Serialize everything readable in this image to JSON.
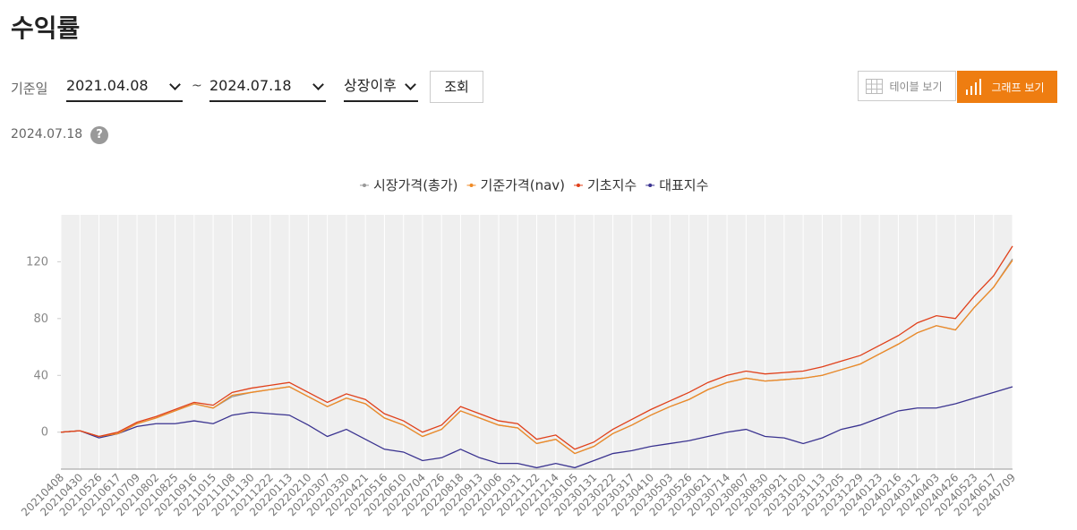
{
  "header": {
    "title": "수익률"
  },
  "controls": {
    "label": "기준일",
    "start": "2021.04.08",
    "tilde": "~",
    "end": "2024.07.18",
    "period": "상장이후",
    "search": "조회",
    "table_view": "테이블 보기",
    "graph_view": "그래프 보기"
  },
  "as_of": "2024.07.18",
  "help": "?",
  "chart_data": {
    "type": "line",
    "categories": [
      "20210408",
      "20210430",
      "20210526",
      "20210617",
      "20210709",
      "20210802",
      "20210825",
      "20210916",
      "20211015",
      "20211108",
      "20211130",
      "20211222",
      "20220113",
      "20220210",
      "20220307",
      "20220330",
      "20220421",
      "20220516",
      "20220610",
      "20220704",
      "20220726",
      "20220818",
      "20220913",
      "20221006",
      "20221031",
      "20221122",
      "20221214",
      "20230105",
      "20230131",
      "20230222",
      "20230317",
      "20230410",
      "20230503",
      "20230526",
      "20230621",
      "20230714",
      "20230807",
      "20230830",
      "20230921",
      "20231020",
      "20231113",
      "20231205",
      "20231229",
      "20240123",
      "20240216",
      "20240312",
      "20240403",
      "20240426",
      "20240523",
      "20240617",
      "20240709"
    ],
    "series": [
      {
        "name": "시장가격(총가)",
        "color": "#999999",
        "values": [
          0,
          1,
          -3,
          -1,
          6,
          10,
          15,
          20,
          17,
          25,
          28,
          30,
          32,
          25,
          18,
          24,
          20,
          10,
          5,
          -3,
          2,
          15,
          10,
          5,
          3,
          -8,
          -5,
          -15,
          -10,
          -1,
          5,
          12,
          18,
          23,
          30,
          35,
          38,
          36,
          37,
          38,
          40,
          44,
          48,
          55,
          62,
          70,
          75,
          72,
          88,
          102,
          122
        ]
      },
      {
        "name": "기준가격(nav)",
        "color": "#f08a24",
        "values": [
          0,
          1,
          -3,
          -1,
          6,
          10,
          15,
          20,
          17,
          26,
          28,
          30,
          32,
          25,
          18,
          24,
          20,
          10,
          5,
          -3,
          2,
          15,
          10,
          5,
          3,
          -8,
          -5,
          -15,
          -10,
          -1,
          5,
          12,
          18,
          23,
          30,
          35,
          38,
          36,
          37,
          38,
          40,
          44,
          48,
          55,
          62,
          70,
          75,
          72,
          88,
          102,
          121
        ]
      },
      {
        "name": "기초지수",
        "color": "#e0401a",
        "values": [
          0,
          1,
          -3,
          0,
          7,
          11,
          16,
          21,
          19,
          28,
          31,
          33,
          35,
          28,
          21,
          27,
          23,
          13,
          8,
          0,
          5,
          18,
          13,
          8,
          6,
          -5,
          -2,
          -12,
          -7,
          2,
          9,
          16,
          22,
          28,
          35,
          40,
          43,
          41,
          42,
          43,
          46,
          50,
          54,
          61,
          68,
          77,
          82,
          80,
          96,
          110,
          131
        ]
      },
      {
        "name": "대표지수",
        "color": "#3a3390",
        "values": [
          0,
          1,
          -4,
          -1,
          4,
          6,
          6,
          8,
          6,
          12,
          14,
          13,
          12,
          5,
          -3,
          2,
          -5,
          -12,
          -14,
          -20,
          -18,
          -12,
          -18,
          -22,
          -22,
          -25,
          -22,
          -25,
          -20,
          -15,
          -13,
          -10,
          -8,
          -6,
          -3,
          0,
          2,
          -3,
          -4,
          -8,
          -4,
          2,
          5,
          10,
          15,
          17,
          17,
          20,
          24,
          28,
          32
        ]
      }
    ],
    "ylim": [
      -26,
      153
    ],
    "yticks": [
      0,
      40,
      80,
      120
    ],
    "grid": true
  }
}
